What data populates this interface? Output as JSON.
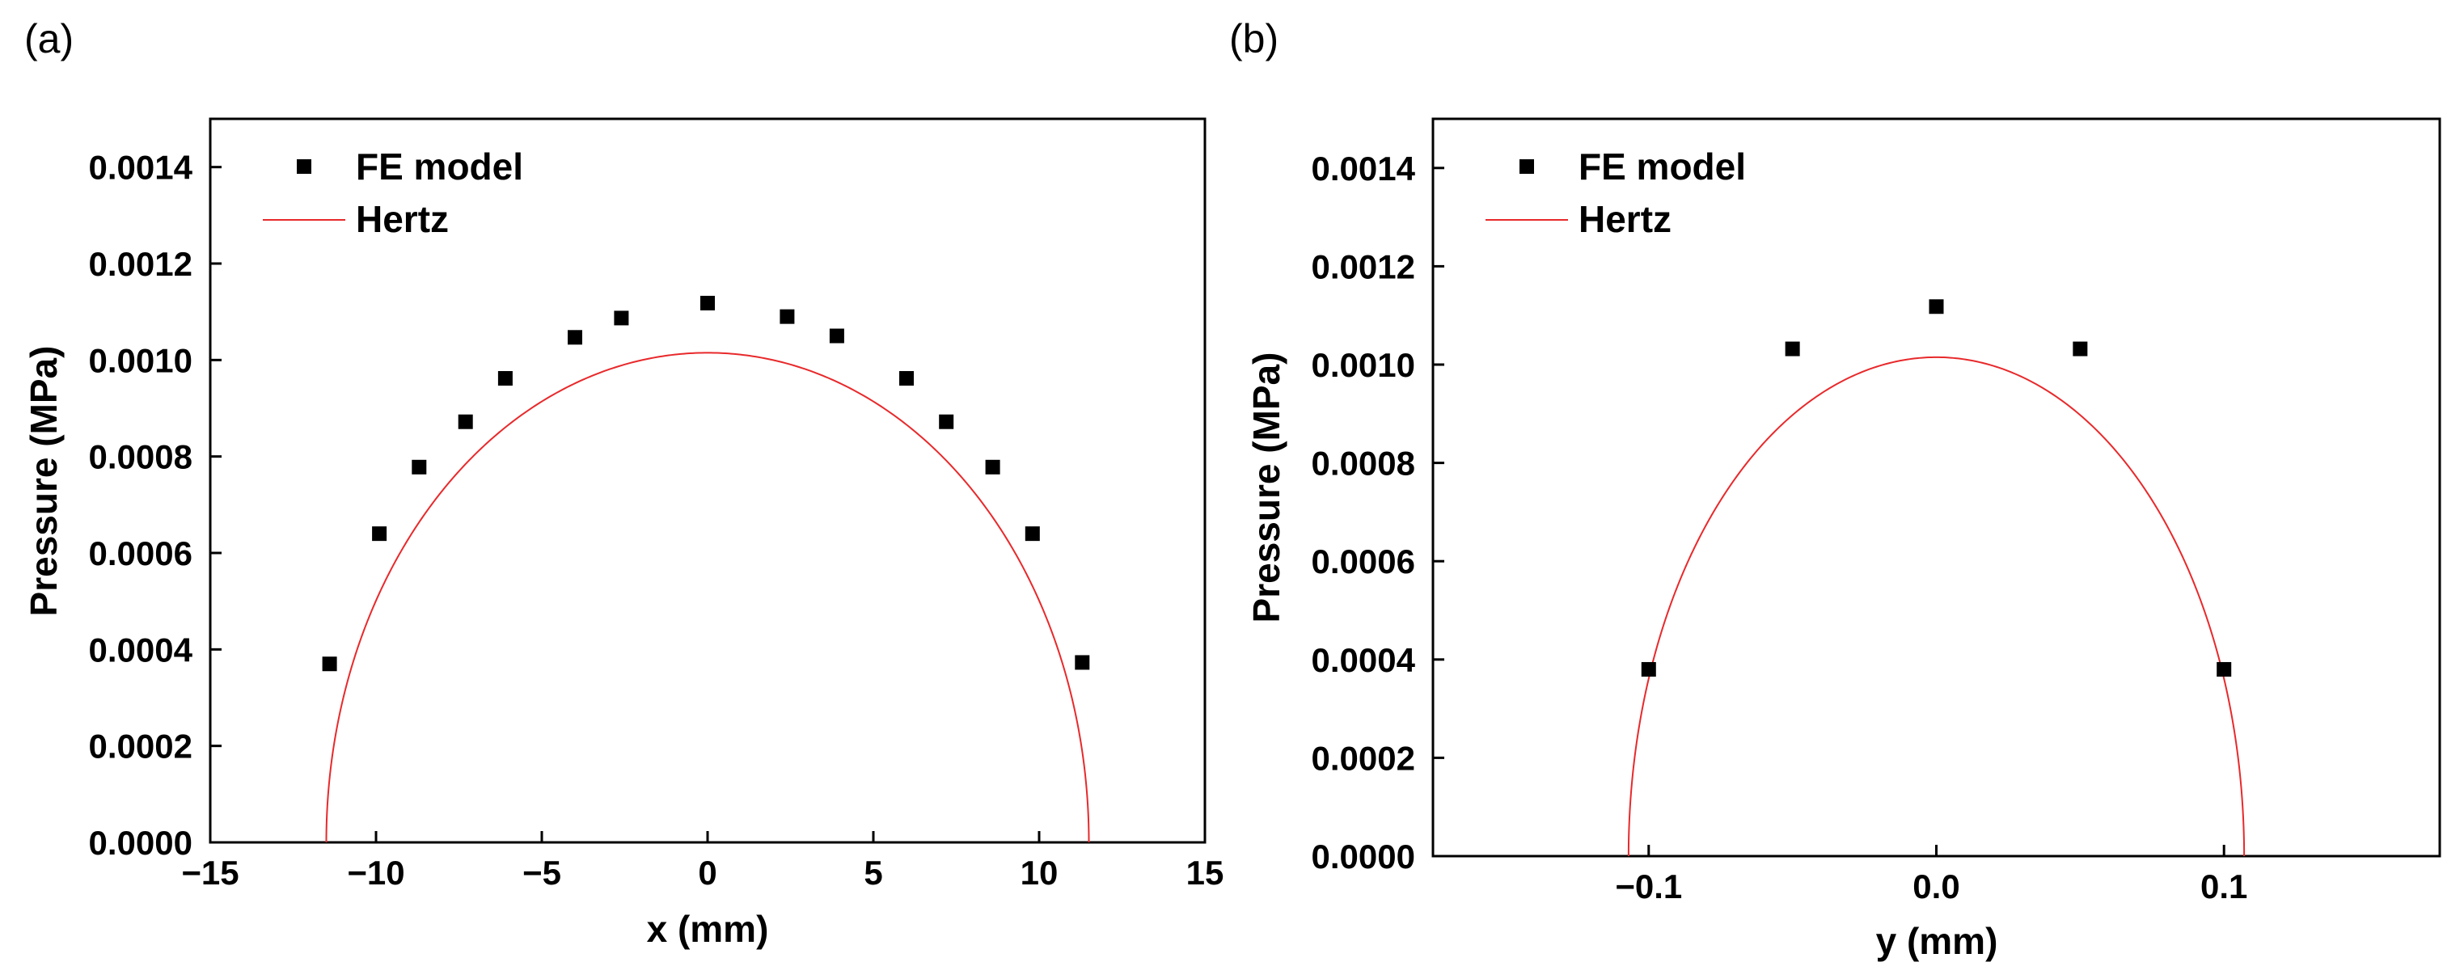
{
  "chart_data": [
    {
      "type": "scatter",
      "panel_label": "(a)",
      "title": "",
      "xlabel": "x (mm)",
      "ylabel": "Pressure (MPa)",
      "xlim": [
        -15,
        15
      ],
      "ylim": [
        0,
        0.0015
      ],
      "xticks": [
        -15,
        -10,
        -5,
        0,
        5,
        10,
        15
      ],
      "xtick_labels": [
        "−15",
        "−10",
        "−5",
        "0",
        "5",
        "10",
        "15"
      ],
      "yticks": [
        0,
        0.0002,
        0.0004,
        0.0006,
        0.0008,
        0.001,
        0.0012,
        0.0014
      ],
      "ytick_labels": [
        "0.0000",
        "0.0002",
        "0.0004",
        "0.0006",
        "0.0008",
        "0.0010",
        "0.0012",
        "0.0014"
      ],
      "grid": false,
      "legend_position": "top-left",
      "legend": [
        "FE model",
        "Hertz"
      ],
      "series": [
        {
          "name": "FE model",
          "kind": "scatter",
          "marker": "square",
          "color": "#000000",
          "x": [
            -11.4,
            -9.9,
            -8.7,
            -7.3,
            -6.1,
            -4.0,
            -2.6,
            0.0,
            2.4,
            3.9,
            6.0,
            7.2,
            8.6,
            9.8,
            11.3
          ],
          "y": [
            0.00037,
            0.00064,
            0.000778,
            0.000872,
            0.000962,
            0.001047,
            0.001087,
            0.001118,
            0.00109,
            0.00105,
            0.000962,
            0.000872,
            0.000778,
            0.00064,
            0.000373
          ]
        },
        {
          "name": "Hertz",
          "kind": "line",
          "color": "#e8292b",
          "function": "elliptical",
          "p0": 0.001015,
          "half_width": 11.5
        }
      ]
    },
    {
      "type": "scatter",
      "panel_label": "(b)",
      "title": "",
      "xlabel": "y (mm)",
      "ylabel": "Pressure (MPa)",
      "xlim": [
        -0.175,
        0.175
      ],
      "ylim": [
        0,
        0.0015
      ],
      "xticks": [
        -0.1,
        0.0,
        0.1
      ],
      "xtick_labels": [
        "−0.1",
        "0.0",
        "0.1"
      ],
      "yticks": [
        0,
        0.0002,
        0.0004,
        0.0006,
        0.0008,
        0.001,
        0.0012,
        0.0014
      ],
      "ytick_labels": [
        "0.0000",
        "0.0002",
        "0.0004",
        "0.0006",
        "0.0008",
        "0.0010",
        "0.0012",
        "0.0014"
      ],
      "grid": false,
      "legend_position": "top-left",
      "legend": [
        "FE model",
        "Hertz"
      ],
      "series": [
        {
          "name": "FE model",
          "kind": "scatter",
          "marker": "square",
          "color": "#000000",
          "x": [
            -0.1,
            -0.05,
            0.0,
            0.05,
            0.1
          ],
          "y": [
            0.00038,
            0.001032,
            0.001118,
            0.001032,
            0.00038
          ]
        },
        {
          "name": "Hertz",
          "kind": "line",
          "color": "#e8292b",
          "function": "elliptical",
          "p0": 0.001015,
          "half_width": 0.107
        }
      ]
    }
  ]
}
